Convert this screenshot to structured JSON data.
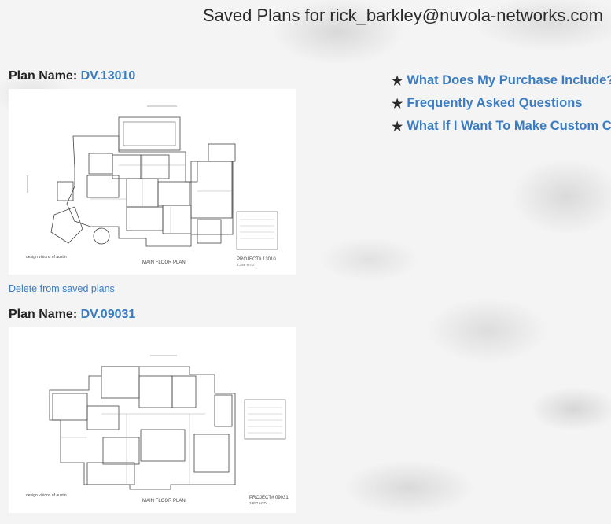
{
  "header": {
    "title": "Saved Plans for rick_barkley@nuvola-networks.com"
  },
  "plans": [
    {
      "label": "Plan Name:",
      "name": "DV.13010",
      "sheet_title": "MAIN FLOOR PLAN",
      "project": "PROJECT# 13010",
      "area": "4,389 HTD.",
      "logo": "design visions of austin",
      "delete": "Delete from saved plans"
    },
    {
      "label": "Plan Name:",
      "name": "DV.09031",
      "sheet_title": "MAIN FLOOR PLAN",
      "project": "PROJECT# 09031",
      "area": "3,897 HTD.",
      "logo": "design visions of austin"
    }
  ],
  "links": [
    {
      "label": "What Does My Purchase Include?",
      "icon": "star-icon"
    },
    {
      "label": "Frequently Asked Questions",
      "icon": "star-icon"
    },
    {
      "label": "What If I Want To Make Custom Changes?",
      "icon": "star-icon"
    }
  ]
}
